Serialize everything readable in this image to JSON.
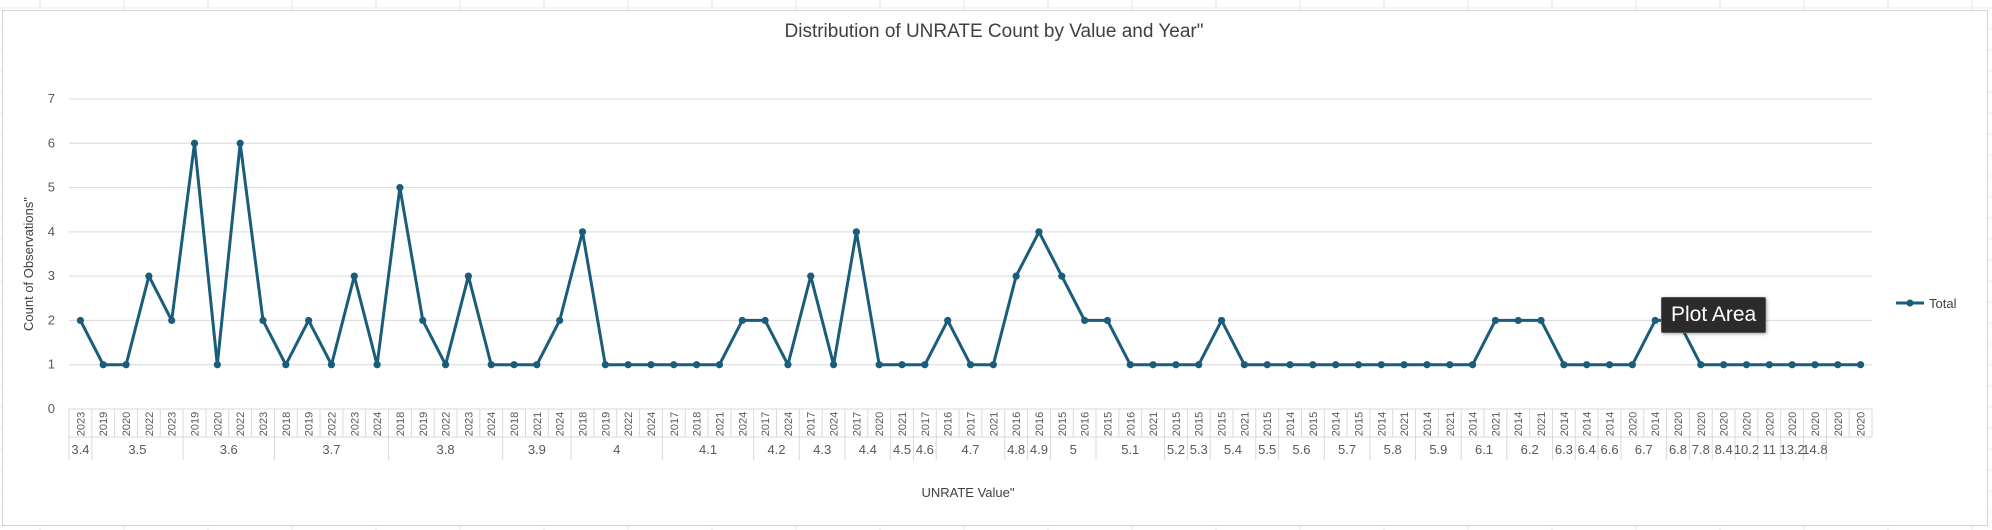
{
  "chart_data": {
    "type": "line",
    "title": "Distribution of UNRATE Count by Value and Year\"",
    "ylabel": "Count of Observations\"",
    "xlabel": "UNRATE Value\"",
    "ylim": [
      0,
      7
    ],
    "yticks": [
      "0",
      "1",
      "2",
      "3",
      "4",
      "5",
      "6",
      "7"
    ],
    "grid": true,
    "legend_position": "right",
    "series": [
      {
        "name": "Total",
        "color": "#1a5d7a",
        "values": [
          2,
          1,
          1,
          3,
          2,
          6,
          1,
          6,
          2,
          1,
          2,
          1,
          3,
          1,
          5,
          2,
          1,
          3,
          1,
          1,
          1,
          2,
          4,
          1,
          1,
          1,
          1,
          1,
          1,
          2,
          2,
          1,
          3,
          1,
          4,
          1,
          1,
          1,
          2,
          1,
          1,
          3,
          4,
          3,
          2,
          2,
          1,
          1,
          1,
          1,
          2,
          1,
          1,
          1,
          1,
          1,
          1,
          1,
          1,
          1,
          1,
          1,
          2,
          2,
          2,
          1,
          1,
          1,
          1,
          2,
          2,
          1,
          1,
          1,
          1,
          1,
          1,
          1,
          1
        ]
      }
    ],
    "year_labels": [
      "2023",
      "2019",
      "2020",
      "2022",
      "2023",
      "2019",
      "2020",
      "2022",
      "2023",
      "2018",
      "2019",
      "2022",
      "2023",
      "2024",
      "2018",
      "2019",
      "2022",
      "2023",
      "2024",
      "2018",
      "2021",
      "2024",
      "2018",
      "2019",
      "2022",
      "2024",
      "2017",
      "2018",
      "2021",
      "2024",
      "2017",
      "2024",
      "2017",
      "2024",
      "2017",
      "2020",
      "2021",
      "2017",
      "2016",
      "2017",
      "2021",
      "2016",
      "2016",
      "2015",
      "2016",
      "2015",
      "2016",
      "2021",
      "2015",
      "2015",
      "2015",
      "2021",
      "2015",
      "2014",
      "2015",
      "2014",
      "2015",
      "2014",
      "2021",
      "2014",
      "2021",
      "2014",
      "2021",
      "2014",
      "2021",
      "2014",
      "2014",
      "2014",
      "2020",
      "2014",
      "2020",
      "2020",
      "2020",
      "2020",
      "2020",
      "2020",
      "2020",
      "2020",
      "2020"
    ],
    "value_groups": [
      {
        "label": "3.4",
        "count": 1
      },
      {
        "label": "3.5",
        "count": 4
      },
      {
        "label": "3.6",
        "count": 4
      },
      {
        "label": "3.7",
        "count": 5
      },
      {
        "label": "3.8",
        "count": 5
      },
      {
        "label": "3.9",
        "count": 3
      },
      {
        "label": "4",
        "count": 4
      },
      {
        "label": "4.1",
        "count": 4
      },
      {
        "label": "4.2",
        "count": 2
      },
      {
        "label": "4.3",
        "count": 2
      },
      {
        "label": "4.4",
        "count": 2
      },
      {
        "label": "4.5",
        "count": 1
      },
      {
        "label": "4.6",
        "count": 1
      },
      {
        "label": "4.7",
        "count": 3
      },
      {
        "label": "4.8",
        "count": 1
      },
      {
        "label": "4.9",
        "count": 1
      },
      {
        "label": "5",
        "count": 2
      },
      {
        "label": "5.1",
        "count": 3
      },
      {
        "label": "5.2",
        "count": 1
      },
      {
        "label": "5.3",
        "count": 1
      },
      {
        "label": "5.4",
        "count": 2
      },
      {
        "label": "5.5",
        "count": 1
      },
      {
        "label": "5.6",
        "count": 2
      },
      {
        "label": "5.7",
        "count": 2
      },
      {
        "label": "5.8",
        "count": 2
      },
      {
        "label": "5.9",
        "count": 2
      },
      {
        "label": "6.1",
        "count": 2
      },
      {
        "label": "6.2",
        "count": 2
      },
      {
        "label": "6.3",
        "count": 1
      },
      {
        "label": "6.4",
        "count": 1
      },
      {
        "label": "6.6",
        "count": 1
      },
      {
        "label": "6.7",
        "count": 2
      },
      {
        "label": "6.8",
        "count": 1
      },
      {
        "label": "7.8",
        "count": 1
      },
      {
        "label": "8.4",
        "count": 1
      },
      {
        "label": "10.2",
        "count": 1
      },
      {
        "label": "11",
        "count": 1
      },
      {
        "label": "13.2",
        "count": 1
      },
      {
        "label": "14.8",
        "count": 1
      }
    ]
  },
  "tooltip": {
    "text": "Plot Area"
  }
}
